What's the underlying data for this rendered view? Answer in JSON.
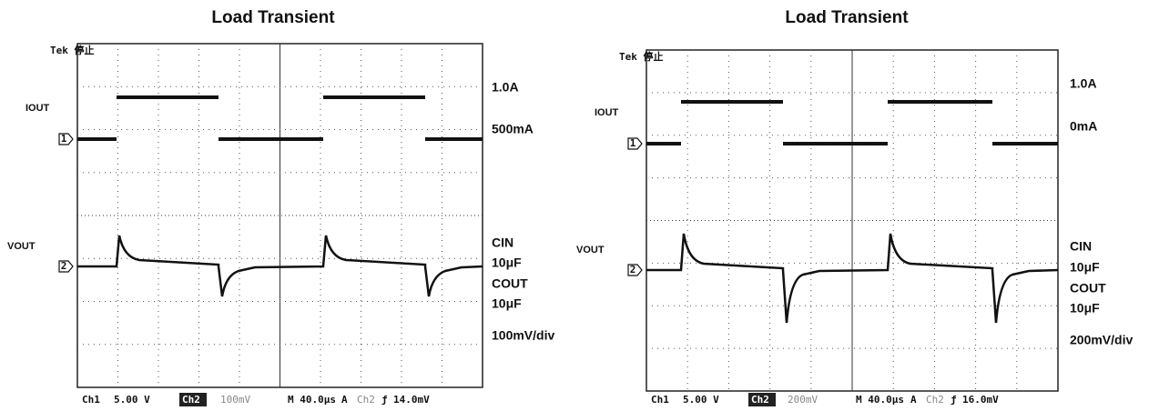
{
  "panels": [
    {
      "title": "Load Transient",
      "status": "Tek 停止",
      "iout": "IOUT",
      "vout": "VOUT",
      "ch1_marker": "1",
      "ch2_marker": "2",
      "right_labels": [
        "1.0A",
        "500mA",
        "CIN",
        "10μF",
        "COUT",
        "10μF",
        "100mV/div"
      ],
      "footer": [
        "Ch1",
        "5.00 V",
        "Ch2",
        "100mV",
        "M 40.0μs",
        "A",
        "Ch2",
        "14.0mV"
      ]
    },
    {
      "title": "Load Transient",
      "status": "Tek 停止",
      "iout": "IOUT",
      "vout": "VOUT",
      "ch1_marker": "1",
      "ch2_marker": "2",
      "right_labels": [
        "1.0A",
        "0mA",
        "CIN",
        "10μF",
        "COUT",
        "10μF",
        "200mV/div"
      ],
      "footer": [
        "Ch1",
        "5.00 V",
        "Ch2",
        "200mV",
        "M 40.0μs",
        "A",
        "Ch2",
        "16.0mV"
      ]
    }
  ]
}
